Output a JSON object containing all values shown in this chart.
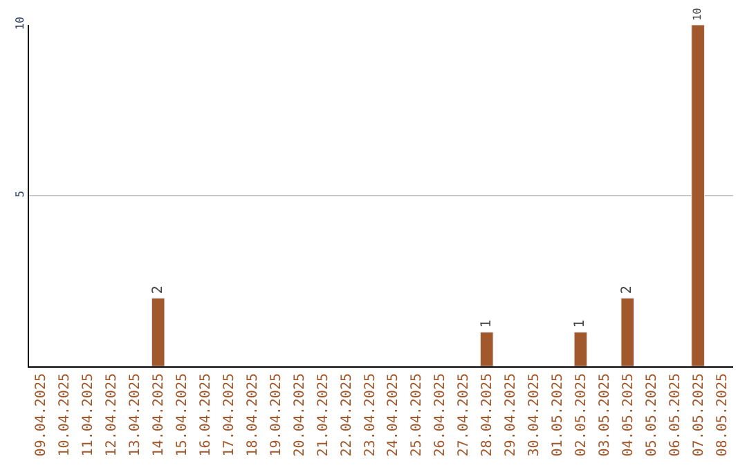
{
  "chart_data": {
    "type": "bar",
    "categories": [
      "09.04.2025",
      "10.04.2025",
      "11.04.2025",
      "12.04.2025",
      "13.04.2025",
      "14.04.2025",
      "15.04.2025",
      "16.04.2025",
      "17.04.2025",
      "18.04.2025",
      "19.04.2025",
      "20.04.2025",
      "21.04.2025",
      "22.04.2025",
      "23.04.2025",
      "24.04.2025",
      "25.04.2025",
      "26.04.2025",
      "27.04.2025",
      "28.04.2025",
      "29.04.2025",
      "30.04.2025",
      "01.05.2025",
      "02.05.2025",
      "03.05.2025",
      "04.05.2025",
      "05.05.2025",
      "06.05.2025",
      "07.05.2025",
      "08.05.2025"
    ],
    "values": [
      null,
      null,
      null,
      null,
      null,
      2,
      null,
      null,
      null,
      null,
      null,
      null,
      null,
      null,
      null,
      null,
      null,
      null,
      null,
      1,
      null,
      null,
      null,
      1,
      null,
      2,
      null,
      null,
      10,
      null
    ],
    "data_labels": true,
    "color": "#a0582c",
    "ylim": [
      0,
      10
    ],
    "yticks": [
      5,
      10
    ],
    "grid": "y"
  }
}
